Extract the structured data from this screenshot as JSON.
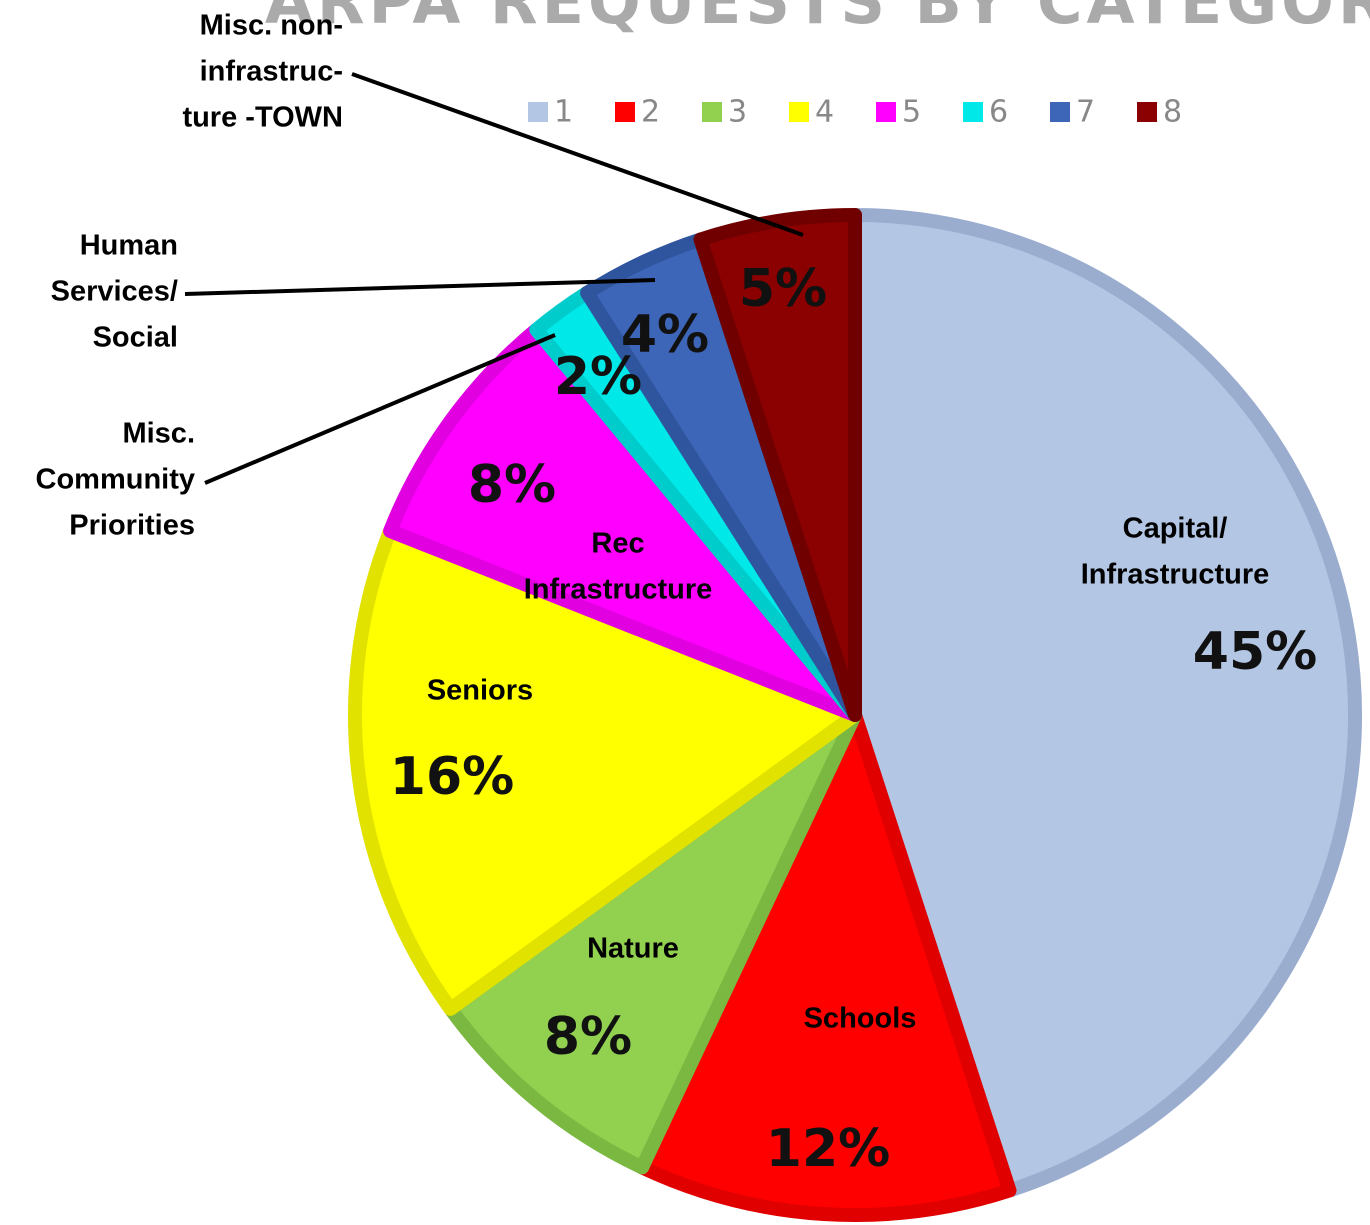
{
  "chart_data": {
    "type": "pie",
    "title": "ARPA REQUESTS BY CATEGORY",
    "categories": [
      [
        "Capital/",
        "Infrastructure"
      ],
      [
        "Schools"
      ],
      [
        "Nature"
      ],
      [
        "Seniors"
      ],
      [
        "Rec",
        "Infrastructure"
      ],
      [
        "Misc.",
        "Community",
        "Priorities"
      ],
      [
        "Human",
        "Services/",
        "Social"
      ],
      [
        "Misc. non-",
        "infrastruc-",
        "ture -TOWN"
      ]
    ],
    "values": [
      45,
      12,
      8,
      16,
      8,
      2,
      4,
      5
    ],
    "value_labels": [
      "45%",
      "12%",
      "8%",
      "16%",
      "8%",
      "2%",
      "4%",
      "5%"
    ],
    "legend": [
      "1",
      "2",
      "3",
      "4",
      "5",
      "6",
      "7",
      "8"
    ],
    "colors": [
      "#b3c6e4",
      "#ff0000",
      "#92d050",
      "#ffff00",
      "#ff00ff",
      "#00e8e8",
      "#3e66b8",
      "#8b0000"
    ],
    "border_colors": [
      "#9badcf",
      "#e00000",
      "#7bb842",
      "#e2e200",
      "#e000e0",
      "#00cccc",
      "#2f559f",
      "#700000"
    ]
  }
}
